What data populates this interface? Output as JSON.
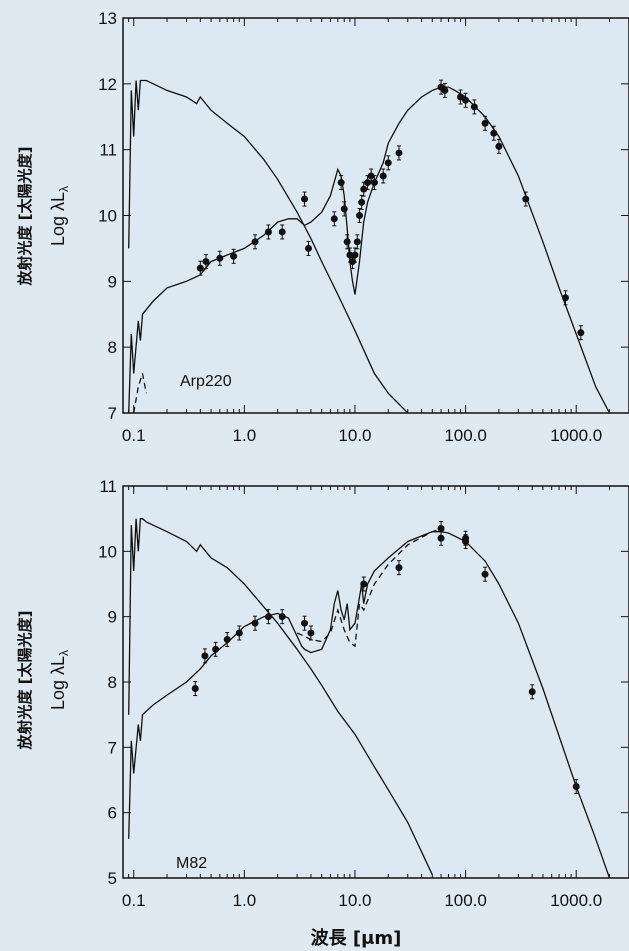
{
  "chart_data": [
    {
      "type": "line",
      "panel_label": "Arp220",
      "ylabel_jp": "放射光度 [太陽光度]",
      "ylabel": "Log λL",
      "ylabel_sub": "λ",
      "xlabel": "",
      "x_scale": "log",
      "xlim": [
        0.08,
        3000
      ],
      "ylim": [
        7,
        13
      ],
      "x_ticks": [
        0.1,
        1,
        10,
        100,
        1000
      ],
      "x_tick_labels": [
        "0.1",
        "1.0",
        "10.0",
        "100.0",
        "1000.0"
      ],
      "y_ticks": [
        7,
        8,
        9,
        10,
        11,
        12,
        13
      ],
      "y_tick_labels": [
        "7",
        "8",
        "9",
        "10",
        "11",
        "12",
        "13"
      ],
      "series": [
        {
          "style": "solid",
          "x": [
            0.09,
            0.095,
            0.1,
            0.105,
            0.11,
            0.115,
            0.12,
            0.13,
            0.15,
            0.2,
            0.3,
            0.37,
            0.4,
            0.5,
            0.7,
            1.0,
            1.5,
            2.0,
            3.0,
            4.0,
            5.0,
            7.0,
            10.0,
            15.0,
            20.0,
            30.0
          ],
          "y": [
            9.5,
            11.9,
            11.2,
            12.05,
            11.6,
            12.05,
            12.05,
            12.05,
            12.0,
            11.9,
            11.8,
            11.7,
            11.8,
            11.6,
            11.4,
            11.2,
            10.85,
            10.55,
            10.05,
            9.65,
            9.3,
            8.8,
            8.25,
            7.6,
            7.3,
            7.0
          ]
        },
        {
          "style": "solid",
          "x": [
            0.09,
            0.095,
            0.1,
            0.11,
            0.115,
            0.12,
            0.15,
            0.2,
            0.3,
            0.4,
            0.5,
            0.7,
            1.0,
            1.5,
            2.0,
            2.5,
            3.0,
            3.5,
            4.0,
            5.0,
            6.0,
            7.0,
            7.5,
            8.0,
            8.5,
            9.0,
            9.5,
            10.0,
            11.0,
            12.0,
            13.0,
            15.0,
            18.0,
            20.0,
            25.0,
            30.0,
            40.0,
            50.0,
            60.0,
            70.0,
            80.0,
            100.0,
            150.0,
            200.0,
            300.0,
            500.0,
            700.0,
            1000.0,
            1500.0,
            2000.0
          ],
          "y": [
            7.0,
            8.2,
            7.6,
            8.4,
            8.1,
            8.5,
            8.7,
            8.9,
            9.0,
            9.1,
            9.3,
            9.4,
            9.5,
            9.7,
            9.9,
            9.95,
            9.95,
            9.85,
            9.9,
            10.05,
            10.3,
            10.7,
            10.6,
            10.3,
            9.8,
            9.3,
            9.0,
            8.8,
            9.3,
            9.9,
            10.2,
            10.5,
            10.8,
            11.1,
            11.4,
            11.6,
            11.8,
            11.9,
            11.95,
            11.95,
            11.9,
            11.8,
            11.5,
            11.2,
            10.6,
            9.6,
            8.9,
            8.2,
            7.4,
            7.0
          ]
        },
        {
          "style": "dashed",
          "x": [
            0.1,
            0.11,
            0.12,
            0.13
          ],
          "y": [
            7.0,
            7.4,
            7.6,
            7.3
          ]
        }
      ],
      "points": {
        "x": [
          0.4,
          0.45,
          0.6,
          0.8,
          1.25,
          1.65,
          2.2,
          3.5,
          3.8,
          6.5,
          7.5,
          8.0,
          8.5,
          9.0,
          9.5,
          10.0,
          10.5,
          11.0,
          11.5,
          12.0,
          13.0,
          14.0,
          15.0,
          18.0,
          20.0,
          25.0,
          60.0,
          65.0,
          90.0,
          100.0,
          120.0,
          150.0,
          180.0,
          200.0,
          350.0,
          800.0,
          1100.0
        ],
        "y": [
          9.2,
          9.3,
          9.35,
          9.38,
          9.6,
          9.75,
          9.75,
          10.25,
          9.5,
          9.95,
          10.5,
          10.1,
          9.6,
          9.4,
          9.3,
          9.4,
          9.6,
          10.0,
          10.2,
          10.4,
          10.5,
          10.6,
          10.5,
          10.6,
          10.8,
          10.95,
          11.95,
          11.9,
          11.8,
          11.75,
          11.65,
          11.4,
          11.25,
          11.05,
          10.25,
          8.75,
          8.22
        ]
      }
    },
    {
      "type": "line",
      "panel_label": "M82",
      "ylabel_jp": "放射光度 [太陽光度]",
      "ylabel": "Log λL",
      "ylabel_sub": "λ",
      "xlabel": "波長 [μm]",
      "x_scale": "log",
      "xlim": [
        0.08,
        3000
      ],
      "ylim": [
        5,
        11
      ],
      "x_ticks": [
        0.1,
        1,
        10,
        100,
        1000
      ],
      "x_tick_labels": [
        "0.1",
        "1.0",
        "10.0",
        "100.0",
        "1000.0"
      ],
      "y_ticks": [
        5,
        6,
        7,
        8,
        9,
        10,
        11
      ],
      "y_tick_labels": [
        "5",
        "6",
        "7",
        "8",
        "9",
        "10",
        "11"
      ],
      "series": [
        {
          "style": "solid",
          "x": [
            0.09,
            0.095,
            0.1,
            0.105,
            0.11,
            0.115,
            0.12,
            0.13,
            0.15,
            0.2,
            0.3,
            0.37,
            0.4,
            0.5,
            0.7,
            1.0,
            1.5,
            2.0,
            3.0,
            4.0,
            5.0,
            7.0,
            10.0,
            15.0,
            20.0,
            30.0,
            50.0
          ],
          "y": [
            7.5,
            10.4,
            9.7,
            10.5,
            10.0,
            10.5,
            10.5,
            10.45,
            10.4,
            10.3,
            10.15,
            10.0,
            10.1,
            9.9,
            9.75,
            9.5,
            9.15,
            8.9,
            8.5,
            8.2,
            7.95,
            7.55,
            7.2,
            6.7,
            6.35,
            5.85,
            5.05
          ]
        },
        {
          "style": "solid",
          "x": [
            0.09,
            0.095,
            0.1,
            0.11,
            0.115,
            0.12,
            0.15,
            0.2,
            0.3,
            0.4,
            0.5,
            0.7,
            1.0,
            1.5,
            2.0,
            2.5,
            3.0,
            3.3,
            3.5,
            4.0,
            5.0,
            6.0,
            6.5,
            7.0,
            7.5,
            8.0,
            8.5,
            9.0,
            10.0,
            11.0,
            11.5,
            12.0,
            13.0,
            15.0,
            20.0,
            30.0,
            50.0,
            60.0,
            70.0,
            100.0,
            150.0,
            200.0,
            300.0,
            500.0,
            1000.0,
            1500.0,
            2000.0
          ],
          "y": [
            5.6,
            7.1,
            6.6,
            7.35,
            7.1,
            7.5,
            7.65,
            7.8,
            8.0,
            8.2,
            8.4,
            8.6,
            8.85,
            9.0,
            9.05,
            8.98,
            8.7,
            8.55,
            8.5,
            8.45,
            8.5,
            8.8,
            9.2,
            9.4,
            9.1,
            8.95,
            9.2,
            8.8,
            8.9,
            9.3,
            9.5,
            9.2,
            9.5,
            9.7,
            9.9,
            10.15,
            10.3,
            10.3,
            10.28,
            10.15,
            9.85,
            9.5,
            8.9,
            7.9,
            6.4,
            5.6,
            5.0
          ]
        },
        {
          "style": "dashed",
          "x": [
            3.0,
            3.5,
            4.0,
            5.0,
            6.0,
            7.0,
            8.0,
            9.0,
            10.0,
            11.0,
            12.0,
            15.0,
            20.0,
            30.0,
            50.0,
            60.0
          ],
          "y": [
            8.75,
            8.7,
            8.65,
            8.62,
            8.75,
            9.1,
            8.8,
            8.6,
            8.55,
            9.2,
            9.1,
            9.5,
            9.8,
            10.1,
            10.3,
            10.35
          ]
        }
      ],
      "points": {
        "x": [
          0.36,
          0.44,
          0.55,
          0.7,
          0.9,
          1.25,
          1.65,
          2.2,
          3.5,
          4.0,
          12.0,
          25.0,
          60.0,
          60.0,
          100.0,
          100.0,
          150.0,
          400.0,
          1000.0
        ],
        "y": [
          7.9,
          8.4,
          8.5,
          8.65,
          8.75,
          8.9,
          9.0,
          9.0,
          8.9,
          8.75,
          9.5,
          9.75,
          10.35,
          10.2,
          10.2,
          10.15,
          9.65,
          7.85,
          6.4
        ]
      }
    }
  ]
}
